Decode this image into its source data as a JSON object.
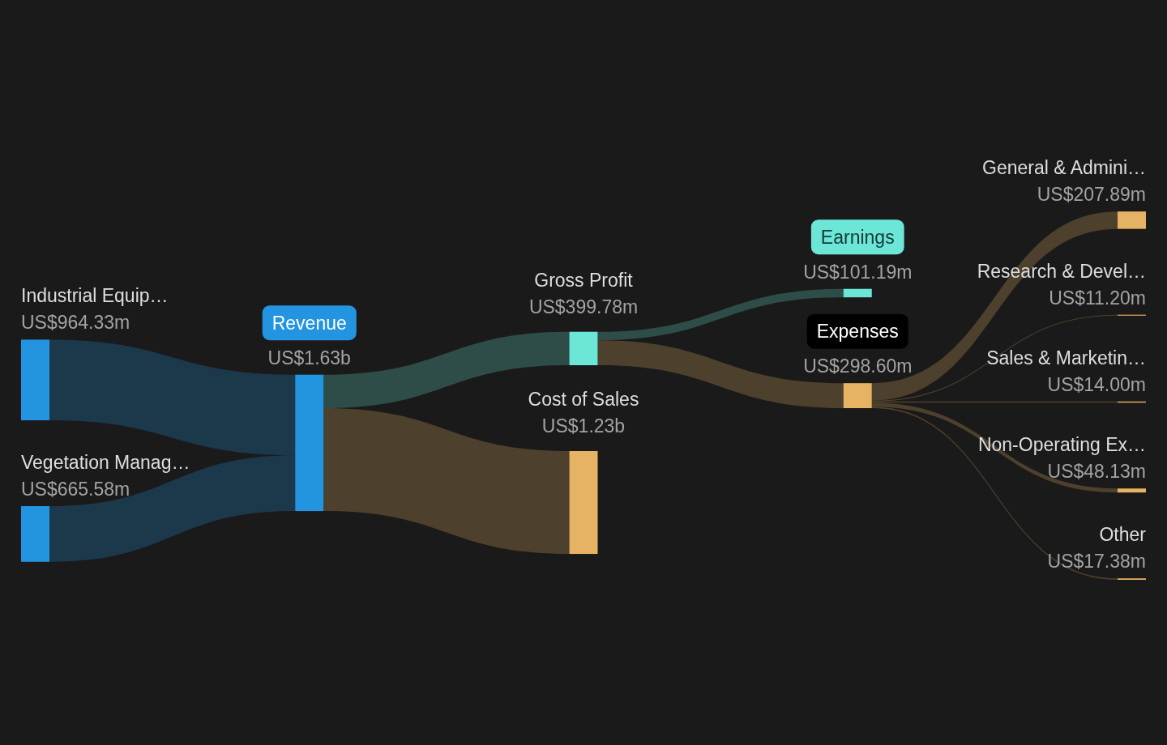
{
  "chart_data": {
    "type": "other",
    "categories": [
      "Industrial Equip…",
      "Vegetation Manag…",
      "Revenue",
      "Gross Profit",
      "Cost of Sales",
      "Earnings",
      "Expenses",
      "General & Admini…",
      "Research & Devel…",
      "Sales & Marketin…",
      "Non-Operating Ex…",
      "Other"
    ],
    "values": [
      964330000,
      665580000,
      1630000000,
      399780000,
      1230000000,
      101190000,
      298600000,
      207890000,
      11200000,
      14000000,
      48130000,
      17380000
    ],
    "value_labels": [
      "US$964.33m",
      "US$665.58m",
      "US$1.63b",
      "US$399.78m",
      "US$1.23b",
      "US$101.19m",
      "US$298.60m",
      "US$207.89m",
      "US$11.20m",
      "US$14.00m",
      "US$48.13m",
      "US$17.38m"
    ],
    "colors": [
      "#2394e0",
      "#2394e0",
      "#2394e0",
      "#6ce6d6",
      "#e6b263",
      "#6ce6d6",
      "#e6b263",
      "#e6b263",
      "#e6b263",
      "#e6b263",
      "#e6b263",
      "#e6b263"
    ],
    "cells": [
      [
        null,
        null,
        true,
        null,
        null,
        null,
        null,
        null,
        null,
        null,
        null,
        null
      ],
      [
        null,
        null,
        true,
        null,
        null,
        null,
        null,
        null,
        null,
        null,
        null,
        null
      ],
      [
        null,
        null,
        null,
        true,
        true,
        null,
        null,
        null,
        null,
        null,
        null,
        null
      ],
      [
        null,
        null,
        null,
        null,
        null,
        true,
        true,
        null,
        null,
        null,
        null,
        null
      ],
      [
        null,
        null,
        null,
        null,
        null,
        null,
        null,
        null,
        null,
        null,
        null,
        null
      ],
      [
        null,
        null,
        null,
        null,
        null,
        null,
        null,
        null,
        null,
        null,
        null,
        null
      ],
      [
        null,
        null,
        null,
        null,
        null,
        null,
        null,
        true,
        true,
        true,
        true,
        true
      ],
      [
        null,
        null,
        null,
        null,
        null,
        null,
        null,
        null,
        null,
        null,
        null,
        null
      ],
      [
        null,
        null,
        null,
        null,
        null,
        null,
        null,
        null,
        null,
        null,
        null,
        null
      ],
      [
        null,
        null,
        null,
        null,
        null,
        null,
        null,
        null,
        null,
        null,
        null,
        null
      ],
      [
        null,
        null,
        null,
        null,
        null,
        null,
        null,
        null,
        null,
        null,
        null,
        null
      ],
      [
        null,
        null,
        null,
        null,
        null,
        null,
        null,
        null,
        null,
        null,
        null,
        null
      ]
    ]
  }
}
